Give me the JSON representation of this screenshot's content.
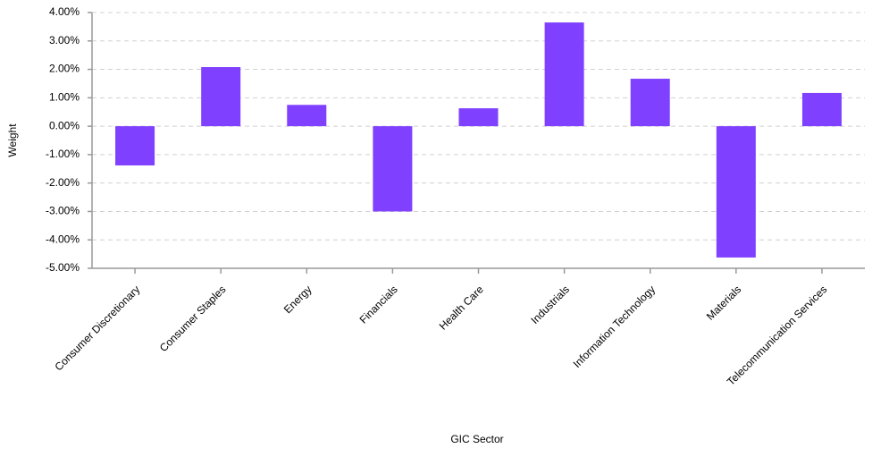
{
  "chart_data": {
    "type": "bar",
    "x_label": "GIC Sector",
    "y_label": "Weight",
    "categories": [
      "Consumer Discretionary",
      "Consumer Staples",
      "Energy",
      "Financials",
      "Health Care",
      "Industrials",
      "Information Technology",
      "Materials",
      "Telecommunication Services"
    ],
    "values": [
      -1.38,
      2.08,
      0.75,
      -3.0,
      0.63,
      3.65,
      1.67,
      -4.62,
      1.17
    ],
    "color": "#7f40ff",
    "ylim": [
      -5,
      4
    ],
    "yticks": [
      {
        "value": -5,
        "label": "-5.00%"
      },
      {
        "value": -4,
        "label": "-4.00%"
      },
      {
        "value": -3,
        "label": "-3.00%"
      },
      {
        "value": -2,
        "label": "-2.00%"
      },
      {
        "value": -1,
        "label": "-1.00%"
      },
      {
        "value": 0,
        "label": "0.00%"
      },
      {
        "value": 1,
        "label": "1.00%"
      },
      {
        "value": 2,
        "label": "2.00%"
      },
      {
        "value": 3,
        "label": "3.00%"
      },
      {
        "value": 4,
        "label": "4.00%"
      }
    ],
    "grid": true
  }
}
